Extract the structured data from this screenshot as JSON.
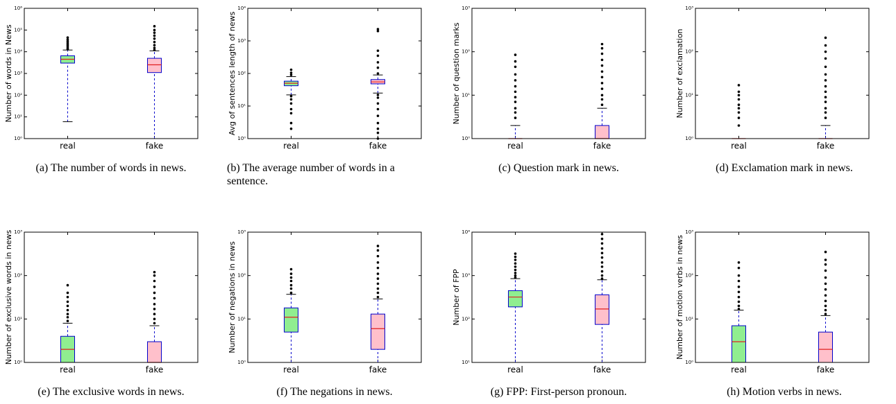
{
  "chart_data": [
    {
      "type": "box",
      "ylabel": "Number of words in News",
      "caption": "(a) The number of words in news.",
      "log_y": true,
      "ylim": [
        1,
        1000000
      ],
      "yticks": [
        {
          "value": 1,
          "label": "10⁰"
        },
        {
          "value": 10,
          "label": "10¹"
        },
        {
          "value": 100,
          "label": "10²"
        },
        {
          "value": 1000,
          "label": "10³"
        },
        {
          "value": 10000,
          "label": "10⁴"
        },
        {
          "value": 100000,
          "label": "10⁵"
        },
        {
          "value": 1000000,
          "label": "10⁶"
        }
      ],
      "boxes": [
        {
          "name": "real",
          "color": "#90ee90",
          "whislo": 6,
          "q1": 3000,
          "med": 4500,
          "q3": 6500,
          "whishi": 12000,
          "fliers": [
            13000,
            15000,
            18000,
            21000,
            25000,
            30000,
            36000,
            45000
          ]
        },
        {
          "name": "fake",
          "color": "#ffc0cb",
          "whislo": 1,
          "q1": 1100,
          "med": 2500,
          "q3": 5000,
          "whishi": 11000,
          "fliers": [
            12000,
            15000,
            20000,
            28000,
            40000,
            55000,
            75000,
            100000,
            150000
          ]
        }
      ]
    },
    {
      "type": "box",
      "ylabel": "Avg of sentences length of news",
      "caption": "(b) The average number of words in a sentence.",
      "log_y": true,
      "ylim": [
        1,
        10000
      ],
      "yticks": [
        {
          "value": 1,
          "label": "10⁰"
        },
        {
          "value": 10,
          "label": "10¹"
        },
        {
          "value": 100,
          "label": "10²"
        },
        {
          "value": 1000,
          "label": "10³"
        },
        {
          "value": 10000,
          "label": "10⁴"
        }
      ],
      "boxes": [
        {
          "name": "real",
          "color": "#90ee90",
          "whislo": 22,
          "q1": 42,
          "med": 50,
          "q3": 58,
          "whishi": 80,
          "fliers": [
            2,
            3,
            6,
            8,
            12,
            16,
            20,
            90,
            105,
            130
          ]
        },
        {
          "name": "fake",
          "color": "#ffc0cb",
          "whislo": 25,
          "q1": 48,
          "med": 55,
          "q3": 65,
          "whishi": 90,
          "fliers": [
            1,
            1.5,
            2,
            3,
            5,
            8,
            12,
            18,
            22,
            100,
            150,
            220,
            350,
            500,
            2000,
            2300
          ]
        }
      ]
    },
    {
      "type": "box",
      "ylabel": "Number of question marks",
      "caption": "(c) Question mark in news.",
      "log_y": true,
      "ylim": [
        1,
        1000
      ],
      "yticks": [
        {
          "value": 1,
          "label": "10⁰"
        },
        {
          "value": 10,
          "label": "10¹"
        },
        {
          "value": 100,
          "label": "10²"
        },
        {
          "value": 1000,
          "label": "10³"
        }
      ],
      "boxes": [
        {
          "name": "real",
          "color": "#90ee90",
          "whislo": 1,
          "q1": 1,
          "med": 1,
          "q3": 1,
          "whishi": 2,
          "fliers": [
            3,
            4,
            5,
            7,
            9,
            12,
            16,
            22,
            30,
            45,
            60,
            85
          ]
        },
        {
          "name": "fake",
          "color": "#ffc0cb",
          "whislo": 1,
          "q1": 1,
          "med": 1,
          "q3": 2,
          "whishi": 5,
          "fliers": [
            6,
            8,
            10,
            14,
            19,
            26,
            35,
            48,
            65,
            90,
            120,
            150
          ]
        }
      ]
    },
    {
      "type": "box",
      "ylabel": "Number of exclamation",
      "caption": "(d) Exclamation mark in news.",
      "log_y": true,
      "ylim": [
        1,
        1000
      ],
      "yticks": [
        {
          "value": 1,
          "label": "10⁰"
        },
        {
          "value": 10,
          "label": "10¹"
        },
        {
          "value": 100,
          "label": "10²"
        },
        {
          "value": 1000,
          "label": "10³"
        }
      ],
      "boxes": [
        {
          "name": "real",
          "color": "#90ee90",
          "whislo": 1,
          "q1": 1,
          "med": 1,
          "q3": 1,
          "whishi": 1,
          "fliers": [
            2,
            3,
            4,
            5,
            6,
            8,
            10,
            12,
            17
          ]
        },
        {
          "name": "fake",
          "color": "#ffc0cb",
          "whislo": 1,
          "q1": 1,
          "med": 1,
          "q3": 1,
          "whishi": 2,
          "fliers": [
            3,
            4,
            5,
            7,
            9,
            12,
            16,
            22,
            30,
            45,
            70,
            100,
            140,
            210
          ]
        }
      ]
    },
    {
      "type": "box",
      "ylabel": "Number of exclusive words in news",
      "caption": "(e) The exclusive words in news.",
      "log_y": true,
      "ylim": [
        1,
        1000
      ],
      "yticks": [
        {
          "value": 1,
          "label": "10⁰"
        },
        {
          "value": 10,
          "label": "10¹"
        },
        {
          "value": 100,
          "label": "10²"
        },
        {
          "value": 1000,
          "label": "10³"
        }
      ],
      "boxes": [
        {
          "name": "real",
          "color": "#90ee90",
          "whislo": 1,
          "q1": 1,
          "med": 2,
          "q3": 4,
          "whishi": 8,
          "fliers": [
            9,
            11,
            13,
            16,
            20,
            25,
            32,
            40,
            60
          ]
        },
        {
          "name": "fake",
          "color": "#ffc0cb",
          "whislo": 1,
          "q1": 1,
          "med": 1,
          "q3": 3,
          "whishi": 7,
          "fliers": [
            8,
            10,
            13,
            17,
            22,
            30,
            40,
            55,
            75,
            100,
            120
          ]
        }
      ]
    },
    {
      "type": "box",
      "ylabel": "Number of negations in news",
      "caption": "(f) The negations in news.",
      "log_y": true,
      "ylim": [
        1,
        1000
      ],
      "yticks": [
        {
          "value": 1,
          "label": "10⁰"
        },
        {
          "value": 10,
          "label": "10¹"
        },
        {
          "value": 100,
          "label": "10²"
        },
        {
          "value": 1000,
          "label": "10³"
        }
      ],
      "boxes": [
        {
          "name": "real",
          "color": "#90ee90",
          "whislo": 1,
          "q1": 5,
          "med": 11,
          "q3": 18,
          "whishi": 37,
          "fliers": [
            40,
            50,
            60,
            75,
            90,
            110,
            140
          ]
        },
        {
          "name": "fake",
          "color": "#ffc0cb",
          "whislo": 1,
          "q1": 2,
          "med": 6,
          "q3": 13,
          "whishi": 29,
          "fliers": [
            32,
            40,
            50,
            65,
            85,
            110,
            150,
            200,
            280,
            380,
            480
          ]
        }
      ]
    },
    {
      "type": "box",
      "ylabel": "Number of FPP",
      "caption": "(g) FPP: First-person pronoun.",
      "log_y": true,
      "ylim": [
        10,
        10000
      ],
      "yticks": [
        {
          "value": 10,
          "label": "10¹"
        },
        {
          "value": 100,
          "label": "10²"
        },
        {
          "value": 1000,
          "label": "10³"
        },
        {
          "value": 10000,
          "label": "10⁴"
        }
      ],
      "boxes": [
        {
          "name": "real",
          "color": "#90ee90",
          "whislo": 10,
          "q1": 190,
          "med": 320,
          "q3": 450,
          "whishi": 850,
          "fliers": [
            900,
            1000,
            1150,
            1350,
            1600,
            1900,
            2300,
            2700,
            3200
          ]
        },
        {
          "name": "fake",
          "color": "#ffc0cb",
          "whislo": 10,
          "q1": 75,
          "med": 170,
          "q3": 360,
          "whishi": 800,
          "fliers": [
            850,
            1000,
            1250,
            1600,
            2000,
            2600,
            3300,
            4200,
            5500,
            7000,
            9000
          ]
        }
      ]
    },
    {
      "type": "box",
      "ylabel": "Number of motion verbs in news",
      "caption": "(h) Motion verbs in news.",
      "log_y": true,
      "ylim": [
        1,
        1000
      ],
      "yticks": [
        {
          "value": 1,
          "label": "10⁰"
        },
        {
          "value": 10,
          "label": "10¹"
        },
        {
          "value": 100,
          "label": "10²"
        },
        {
          "value": 1000,
          "label": "10³"
        }
      ],
      "boxes": [
        {
          "name": "real",
          "color": "#90ee90",
          "whislo": 1,
          "q1": 1,
          "med": 3,
          "q3": 7,
          "whishi": 16,
          "fliers": [
            17,
            20,
            25,
            32,
            42,
            55,
            75,
            100,
            150,
            200
          ]
        },
        {
          "name": "fake",
          "color": "#ffc0cb",
          "whislo": 1,
          "q1": 1,
          "med": 2,
          "q3": 5,
          "whishi": 12,
          "fliers": [
            13,
            16,
            20,
            26,
            35,
            48,
            65,
            90,
            130,
            180,
            230,
            350
          ]
        }
      ]
    }
  ]
}
